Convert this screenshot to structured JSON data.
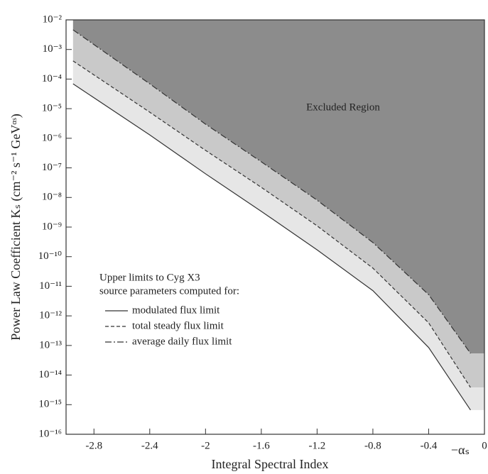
{
  "chart_data": {
    "type": "line",
    "xlabel": "Integral Spectral Index",
    "xlabel_end": "−αₛ",
    "ylabel": "Power Law Coefficient Kₛ (cm⁻² s⁻¹ GeVᵅˢ)",
    "annotations": [
      "Excluded Region"
    ],
    "legend_title": [
      "Upper limits to Cyg X3",
      "source parameters computed for:"
    ],
    "legend_loc": "center left",
    "log_y": true,
    "x": [
      -2.95,
      -2.4,
      -2.0,
      -1.6,
      -1.2,
      -0.8,
      -0.4,
      -0.1
    ],
    "series": [
      {
        "name": "modulated flux limit",
        "color": "#333333",
        "dash": "solid",
        "fill": "#e6e6e6",
        "values": [
          6.9e-05,
          1.3e-06,
          6.3e-08,
          3.4e-09,
          1.7e-10,
          7.1e-12,
          8.5e-14,
          6.6e-16
        ]
      },
      {
        "name": "total steady flux limit",
        "color": "#333333",
        "dash": "dashed",
        "fill": "#c9c9c9",
        "values": [
          0.00041,
          7.6e-06,
          3.9e-07,
          2.2e-08,
          1.1e-09,
          4.1e-11,
          5.8e-13,
          3.8e-15
        ]
      },
      {
        "name": "average daily flux limit",
        "color": "#333333",
        "dash": "dashdot",
        "fill": "#8c8c8c",
        "values": [
          0.0046,
          6.9e-05,
          3e-06,
          1.6e-07,
          8.1e-09,
          3e-10,
          5.2e-12,
          5.4e-14
        ]
      }
    ],
    "xlim": [
      -3.0,
      0
    ],
    "xticks": [
      -2.8,
      -2.4,
      -2.0,
      -1.6,
      -1.2,
      -0.8,
      -0.4,
      0
    ],
    "ylim": [
      1e-16,
      0.01
    ],
    "yticks": [
      {
        "value": 1e-16,
        "label": "10⁻¹⁶"
      },
      {
        "value": 1e-15,
        "label": "10⁻¹⁵"
      },
      {
        "value": 1e-14,
        "label": "10⁻¹⁴"
      },
      {
        "value": 1e-13,
        "label": "10⁻¹³"
      },
      {
        "value": 1e-12,
        "label": "10⁻¹²"
      },
      {
        "value": 1e-11,
        "label": "10⁻¹¹"
      },
      {
        "value": 1e-10,
        "label": "10⁻¹⁰"
      },
      {
        "value": 1e-09,
        "label": "10⁻⁹"
      },
      {
        "value": 1e-08,
        "label": "10⁻⁸"
      },
      {
        "value": 1e-07,
        "label": "10⁻⁷"
      },
      {
        "value": 1e-06,
        "label": "10⁻⁶"
      },
      {
        "value": 1e-05,
        "label": "10⁻⁵"
      },
      {
        "value": 0.0001,
        "label": "10⁻⁴"
      },
      {
        "value": 0.001,
        "label": "10⁻³"
      },
      {
        "value": 0.01,
        "label": "10⁻²"
      }
    ]
  }
}
